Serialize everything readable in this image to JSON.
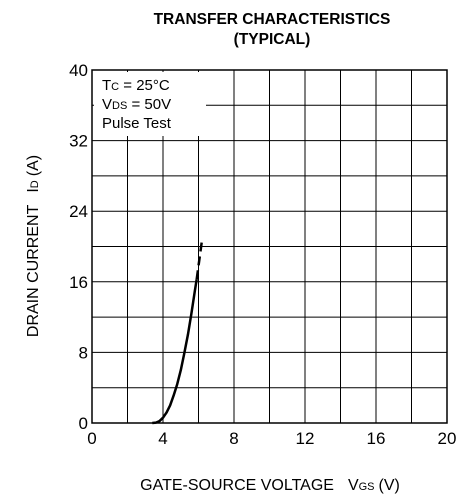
{
  "chart_data": {
    "type": "line",
    "title": "TRANSFER CHARACTERISTICS",
    "subtitle": "(TYPICAL)",
    "xlabel": "GATE-SOURCE VOLTAGE",
    "xlabel_symbol": "V",
    "xlabel_sub": "GS",
    "xlabel_unit": "(V)",
    "ylabel": "DRAIN CURRENT",
    "ylabel_symbol": "I",
    "ylabel_sub": "D",
    "ylabel_unit": "(A)",
    "xlim": [
      0,
      20
    ],
    "ylim": [
      0,
      40
    ],
    "xticks": [
      0,
      4,
      8,
      12,
      16,
      20
    ],
    "yticks": [
      0,
      8,
      16,
      24,
      32,
      40
    ],
    "x_grid_step": 2,
    "y_grid_step": 4,
    "grid": true,
    "annotations": {
      "tc_symbol": "T",
      "tc_sub": "C",
      "tc_value": " = 25°C",
      "vds_symbol": "V",
      "vds_sub": "DS",
      "vds_value": " = 50V",
      "pulse": "Pulse Test"
    },
    "series": [
      {
        "style": "solid",
        "points": [
          [
            3.4,
            0
          ],
          [
            3.6,
            0.05
          ],
          [
            3.8,
            0.2
          ],
          [
            4.0,
            0.6
          ],
          [
            4.2,
            1.2
          ],
          [
            4.4,
            2.0
          ],
          [
            4.6,
            3.1
          ],
          [
            4.8,
            4.4
          ],
          [
            5.0,
            6.0
          ],
          [
            5.2,
            7.9
          ],
          [
            5.4,
            10.0
          ],
          [
            5.6,
            12.4
          ],
          [
            5.8,
            15.0
          ],
          [
            5.9,
            16.3
          ]
        ]
      },
      {
        "style": "dashed",
        "points": [
          [
            5.9,
            16.3
          ],
          [
            6.0,
            17.8
          ],
          [
            6.1,
            19.3
          ],
          [
            6.2,
            20.8
          ]
        ]
      }
    ]
  }
}
